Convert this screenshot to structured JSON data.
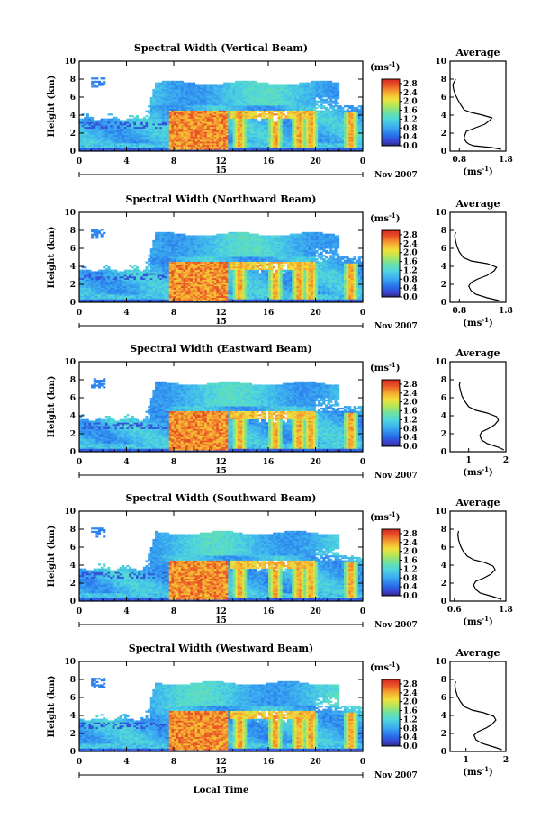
{
  "chart_data": [
    {
      "type": "heatmap",
      "title": "Spectral Width (Vertical Beam)",
      "ylabel": "Height (km)",
      "xlabel": "",
      "x_ticks": [
        "0",
        "4",
        "8",
        "12",
        "16",
        "20",
        "0"
      ],
      "y_ticks": [
        "0",
        "2",
        "4",
        "6",
        "8",
        "10"
      ],
      "xlim": [
        0,
        24
      ],
      "ylim": [
        0,
        10
      ],
      "date_label": "15",
      "month_label": "Nov 2007",
      "colorbar": {
        "unit_base": "(ms",
        "unit_exp": "-1",
        "unit_close": ")",
        "ticks": [
          "2.8",
          "2.4",
          "2.0",
          "1.6",
          "1.2",
          "0.8",
          "0.4",
          "0.0"
        ],
        "range": [
          0,
          3.0
        ]
      },
      "average": {
        "title": "Average",
        "unit_base": "(ms",
        "unit_exp": "-1",
        "unit_close": ")",
        "x_ticks": [
          "0.8",
          "1.8"
        ],
        "y_ticks": [
          "0",
          "2",
          "4",
          "6",
          "8",
          "10"
        ],
        "xlim": [
          0.6,
          1.8
        ],
        "profile": [
          [
            1.7,
            0.2
          ],
          [
            1.5,
            0.4
          ],
          [
            1.1,
            0.6
          ],
          [
            1.0,
            0.8
          ],
          [
            0.95,
            1.0
          ],
          [
            0.9,
            1.4
          ],
          [
            0.92,
            1.8
          ],
          [
            0.95,
            2.2
          ],
          [
            1.15,
            2.6
          ],
          [
            1.35,
            3.0
          ],
          [
            1.45,
            3.4
          ],
          [
            1.5,
            3.7
          ],
          [
            1.3,
            4.0
          ],
          [
            1.05,
            4.3
          ],
          [
            0.9,
            4.6
          ],
          [
            0.85,
            5.0
          ],
          [
            0.78,
            5.6
          ],
          [
            0.72,
            6.2
          ],
          [
            0.68,
            6.8
          ],
          [
            0.66,
            7.4
          ],
          [
            0.7,
            7.8
          ],
          [
            0.72,
            8.0
          ]
        ]
      }
    },
    {
      "type": "heatmap",
      "title": "Spectral Width (Northward Beam)",
      "ylabel": "Height (km)",
      "xlabel": "",
      "x_ticks": [
        "0",
        "4",
        "8",
        "12",
        "16",
        "20",
        "0"
      ],
      "y_ticks": [
        "0",
        "2",
        "4",
        "6",
        "8",
        "10"
      ],
      "xlim": [
        0,
        24
      ],
      "ylim": [
        0,
        10
      ],
      "date_label": "15",
      "month_label": "Nov 2007",
      "colorbar": {
        "unit_base": "(ms",
        "unit_exp": "-1",
        "unit_close": ")",
        "ticks": [
          "2.8",
          "2.4",
          "2.0",
          "1.6",
          "1.2",
          "0.8",
          "0.4",
          "0.0"
        ],
        "range": [
          0,
          3.0
        ]
      },
      "average": {
        "title": "Average",
        "unit_base": "(ms",
        "unit_exp": "-1",
        "unit_close": ")",
        "x_ticks": [
          "0.8",
          "1.8"
        ],
        "y_ticks": [
          "0",
          "2",
          "4",
          "6",
          "8",
          "10"
        ],
        "xlim": [
          0.6,
          1.8
        ],
        "profile": [
          [
            1.65,
            0.2
          ],
          [
            1.4,
            0.5
          ],
          [
            1.15,
            0.9
          ],
          [
            1.05,
            1.3
          ],
          [
            1.0,
            1.8
          ],
          [
            1.05,
            2.2
          ],
          [
            1.2,
            2.6
          ],
          [
            1.4,
            3.0
          ],
          [
            1.55,
            3.5
          ],
          [
            1.6,
            3.9
          ],
          [
            1.4,
            4.3
          ],
          [
            1.05,
            4.6
          ],
          [
            0.88,
            5.0
          ],
          [
            0.8,
            5.6
          ],
          [
            0.75,
            6.2
          ],
          [
            0.72,
            6.8
          ],
          [
            0.7,
            7.4
          ],
          [
            0.72,
            7.8
          ]
        ]
      }
    },
    {
      "type": "heatmap",
      "title": "Spectral Width (Eastward Beam)",
      "ylabel": "Height (km)",
      "xlabel": "",
      "x_ticks": [
        "0",
        "4",
        "8",
        "12",
        "16",
        "20",
        "0"
      ],
      "y_ticks": [
        "0",
        "2",
        "4",
        "6",
        "8",
        "10"
      ],
      "xlim": [
        0,
        24
      ],
      "ylim": [
        0,
        10
      ],
      "date_label": "15",
      "month_label": "Nov 2007",
      "colorbar": {
        "unit_base": "(ms",
        "unit_exp": "-1",
        "unit_close": ")",
        "ticks": [
          "2.8",
          "2.4",
          "2.0",
          "1.6",
          "1.2",
          "0.8",
          "0.4",
          "0.0"
        ],
        "range": [
          0,
          3.0
        ]
      },
      "average": {
        "title": "Average",
        "unit_base": "(ms",
        "unit_exp": "-1",
        "unit_close": ")",
        "x_ticks": [
          "1",
          "2"
        ],
        "y_ticks": [
          "0",
          "2",
          "4",
          "6",
          "8",
          "10"
        ],
        "xlim": [
          0.5,
          2.0
        ],
        "profile": [
          [
            1.95,
            0.2
          ],
          [
            1.8,
            0.5
          ],
          [
            1.5,
            0.9
          ],
          [
            1.35,
            1.3
          ],
          [
            1.3,
            1.8
          ],
          [
            1.35,
            2.2
          ],
          [
            1.55,
            2.6
          ],
          [
            1.7,
            3.0
          ],
          [
            1.8,
            3.5
          ],
          [
            1.75,
            3.9
          ],
          [
            1.5,
            4.3
          ],
          [
            1.2,
            4.6
          ],
          [
            1.0,
            5.0
          ],
          [
            0.9,
            5.6
          ],
          [
            0.82,
            6.2
          ],
          [
            0.78,
            6.8
          ],
          [
            0.75,
            7.4
          ],
          [
            0.77,
            7.8
          ]
        ]
      }
    },
    {
      "type": "heatmap",
      "title": "Spectral Width (Southward Beam)",
      "ylabel": "Height (km)",
      "xlabel": "",
      "x_ticks": [
        "0",
        "4",
        "8",
        "12",
        "16",
        "20",
        "0"
      ],
      "y_ticks": [
        "0",
        "2",
        "4",
        "6",
        "8",
        "10"
      ],
      "xlim": [
        0,
        24
      ],
      "ylim": [
        0,
        10
      ],
      "date_label": "15",
      "month_label": "Nov 2007",
      "colorbar": {
        "unit_base": "(ms",
        "unit_exp": "-1",
        "unit_close": ")",
        "ticks": [
          "2.8",
          "2.4",
          "2.0",
          "1.6",
          "1.2",
          "0.8",
          "0.4",
          "0.0"
        ],
        "range": [
          0,
          3.0
        ]
      },
      "average": {
        "title": "Average",
        "unit_base": "(ms",
        "unit_exp": "-1",
        "unit_close": ")",
        "x_ticks": [
          "0.6",
          "1.8"
        ],
        "y_ticks": [
          "0",
          "2",
          "4",
          "6",
          "8",
          "10"
        ],
        "xlim": [
          0.5,
          1.8
        ],
        "profile": [
          [
            1.7,
            0.2
          ],
          [
            1.5,
            0.5
          ],
          [
            1.2,
            0.9
          ],
          [
            1.1,
            1.3
          ],
          [
            1.05,
            1.8
          ],
          [
            1.1,
            2.2
          ],
          [
            1.3,
            2.6
          ],
          [
            1.45,
            3.0
          ],
          [
            1.55,
            3.5
          ],
          [
            1.5,
            3.9
          ],
          [
            1.3,
            4.3
          ],
          [
            1.05,
            4.6
          ],
          [
            0.9,
            5.0
          ],
          [
            0.8,
            5.6
          ],
          [
            0.74,
            6.2
          ],
          [
            0.7,
            6.8
          ],
          [
            0.68,
            7.4
          ],
          [
            0.7,
            7.8
          ]
        ]
      }
    },
    {
      "type": "heatmap",
      "title": "Spectral Width (Westward Beam)",
      "ylabel": "Height (km)",
      "xlabel": "Local Time",
      "x_ticks": [
        "0",
        "4",
        "8",
        "12",
        "16",
        "20",
        "0"
      ],
      "y_ticks": [
        "0",
        "2",
        "4",
        "6",
        "8",
        "10"
      ],
      "xlim": [
        0,
        24
      ],
      "ylim": [
        0,
        10
      ],
      "date_label": "15",
      "month_label": "Nov 2007",
      "colorbar": {
        "unit_base": "(ms",
        "unit_exp": "-1",
        "unit_close": ")",
        "ticks": [
          "2.8",
          "2.4",
          "2.0",
          "1.6",
          "1.2",
          "0.8",
          "0.4",
          "0.0"
        ],
        "range": [
          0,
          3.0
        ]
      },
      "average": {
        "title": "Average",
        "unit_base": "(ms",
        "unit_exp": "-1",
        "unit_close": ")",
        "x_ticks": [
          "1",
          "2"
        ],
        "y_ticks": [
          "0",
          "2",
          "4",
          "6",
          "8",
          "10"
        ],
        "xlim": [
          0.6,
          2.0
        ],
        "profile": [
          [
            1.9,
            0.2
          ],
          [
            1.7,
            0.5
          ],
          [
            1.4,
            0.9
          ],
          [
            1.25,
            1.3
          ],
          [
            1.2,
            1.8
          ],
          [
            1.3,
            2.2
          ],
          [
            1.5,
            2.6
          ],
          [
            1.65,
            3.0
          ],
          [
            1.75,
            3.5
          ],
          [
            1.7,
            3.9
          ],
          [
            1.45,
            4.3
          ],
          [
            1.15,
            4.6
          ],
          [
            0.95,
            5.0
          ],
          [
            0.85,
            5.6
          ],
          [
            0.78,
            6.2
          ],
          [
            0.74,
            6.8
          ],
          [
            0.72,
            7.4
          ],
          [
            0.74,
            7.8
          ]
        ]
      }
    }
  ]
}
